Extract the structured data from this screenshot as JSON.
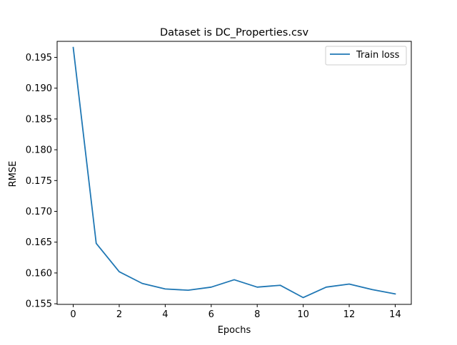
{
  "chart_data": {
    "type": "line",
    "title": "Dataset is DC_Properties.csv",
    "xlabel": "Epochs",
    "ylabel": "RMSE",
    "xlim": [
      -0.7,
      14.7
    ],
    "ylim": [
      0.1549,
      0.1976
    ],
    "x_ticks": [
      0,
      2,
      4,
      6,
      8,
      10,
      12,
      14
    ],
    "x_tick_labels": [
      "0",
      "2",
      "4",
      "6",
      "8",
      "10",
      "12",
      "14"
    ],
    "y_ticks": [
      0.155,
      0.16,
      0.165,
      0.17,
      0.175,
      0.18,
      0.185,
      0.19,
      0.195
    ],
    "y_tick_labels": [
      "0.155",
      "0.160",
      "0.165",
      "0.170",
      "0.175",
      "0.180",
      "0.185",
      "0.190",
      "0.195"
    ],
    "grid": false,
    "legend_position": "top-right",
    "series": [
      {
        "name": "Train loss",
        "color": "#1f77b4",
        "x": [
          0,
          1,
          2,
          3,
          4,
          5,
          6,
          7,
          8,
          9,
          10,
          11,
          12,
          13,
          14
        ],
        "values": [
          0.1966,
          0.1648,
          0.1602,
          0.1583,
          0.1574,
          0.1572,
          0.1577,
          0.1589,
          0.1577,
          0.158,
          0.156,
          0.1577,
          0.1582,
          0.1573,
          0.1566
        ]
      }
    ]
  }
}
